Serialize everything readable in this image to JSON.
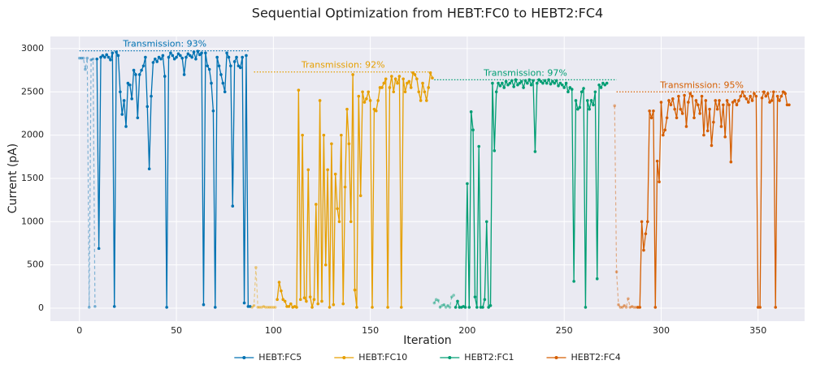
{
  "chart_data": {
    "type": "line",
    "title": "Sequential Optimization from HEBT:FC0 to HEBT2:FC4",
    "x_label": "Iteration",
    "y_label": "Current (pA)",
    "xlim": [
      -15,
      374
    ],
    "ylim": [
      -150,
      3140
    ],
    "xticks": [
      0,
      50,
      100,
      150,
      200,
      250,
      300,
      350
    ],
    "yticks": [
      0,
      500,
      1000,
      1500,
      2000,
      2500,
      3000
    ],
    "grid": true,
    "legend": "bottom",
    "series": [
      {
        "name": "HEBT:FC5",
        "color": "#0072b2",
        "lead_in": {
          "x": [
            0,
            1,
            2,
            3,
            4,
            5,
            6,
            7,
            8
          ],
          "values": [
            2890,
            2890,
            2890,
            2760,
            2890,
            10,
            2870,
            2880,
            20
          ]
        },
        "x": [
          9,
          10,
          11,
          12,
          13,
          14,
          15,
          16,
          17,
          18,
          19,
          20,
          21,
          22,
          23,
          24,
          25,
          26,
          27,
          28,
          29,
          30,
          31,
          32,
          33,
          34,
          35,
          36,
          37,
          38,
          39,
          40,
          41,
          42,
          43,
          44,
          45,
          46,
          47,
          48,
          49,
          50,
          51,
          52,
          53,
          54,
          55,
          56,
          57,
          58,
          59,
          60,
          61,
          62,
          63,
          64,
          65,
          66,
          67,
          68,
          69,
          70,
          71,
          72,
          73,
          74,
          75,
          76,
          77,
          78,
          79,
          80,
          81,
          82,
          83,
          84,
          85,
          86,
          87,
          88
        ],
        "values": [
          2880,
          690,
          2900,
          2920,
          2900,
          2930,
          2900,
          2870,
          2950,
          20,
          2960,
          2920,
          2500,
          2240,
          2400,
          2100,
          2600,
          2580,
          2420,
          2750,
          2700,
          2200,
          2700,
          2750,
          2800,
          2900,
          2330,
          1610,
          2450,
          2840,
          2880,
          2850,
          2900,
          2880,
          2920,
          2680,
          10,
          2900,
          2950,
          2920,
          2880,
          2900,
          2940,
          2920,
          2890,
          2700,
          2900,
          2940,
          2920,
          2900,
          2960,
          2880,
          2970,
          2930,
          2950,
          40,
          2950,
          2800,
          2760,
          2600,
          2280,
          10,
          2900,
          2800,
          2700,
          2600,
          2500,
          2950,
          2900,
          2800,
          1180,
          2850,
          2900,
          2800,
          2780,
          2900,
          60,
          2920,
          20,
          20
        ]
      },
      {
        "name": "HEBT:FC10",
        "color": "#e69f00",
        "lead_in": {
          "x": [
            89,
            90,
            91,
            92,
            93,
            94,
            95,
            96,
            97,
            98,
            99,
            100,
            101
          ],
          "values": [
            10,
            30,
            470,
            10,
            10,
            10,
            20,
            10,
            10,
            10,
            10,
            10,
            10
          ]
        },
        "x": [
          102,
          103,
          104,
          105,
          106,
          107,
          108,
          109,
          110,
          111,
          112,
          113,
          114,
          115,
          116,
          117,
          118,
          119,
          120,
          121,
          122,
          123,
          124,
          125,
          126,
          127,
          128,
          129,
          130,
          131,
          132,
          133,
          134,
          135,
          136,
          137,
          138,
          139,
          140,
          141,
          142,
          143,
          144,
          145,
          146,
          147,
          148,
          149,
          150,
          151,
          152,
          153,
          154,
          155,
          156,
          157,
          158,
          159,
          160,
          161,
          162,
          163,
          164,
          165,
          166,
          167,
          168,
          169,
          170,
          171,
          172,
          173,
          174,
          175,
          176,
          177,
          178,
          179,
          180,
          181,
          182
        ],
        "values": [
          100,
          300,
          200,
          100,
          80,
          20,
          20,
          50,
          10,
          20,
          10,
          2520,
          100,
          2000,
          120,
          80,
          1600,
          130,
          10,
          100,
          1200,
          50,
          2400,
          80,
          2000,
          500,
          1600,
          10,
          1900,
          40,
          1550,
          1150,
          1000,
          2000,
          50,
          1400,
          2300,
          1900,
          1000,
          2700,
          210,
          10,
          2450,
          1300,
          2500,
          2380,
          2420,
          2500,
          2400,
          10,
          2300,
          2280,
          2400,
          2550,
          2550,
          2600,
          2650,
          10,
          2550,
          2680,
          2500,
          2650,
          2600,
          2680,
          10,
          2650,
          2500,
          2600,
          2620,
          2550,
          2720,
          2700,
          2650,
          2500,
          2400,
          2600,
          2500,
          2400,
          2550,
          2720,
          2660
        ]
      },
      {
        "name": "HEBT2:FC1",
        "color": "#009e73",
        "lead_in": {
          "x": [
            183,
            184,
            185,
            186,
            187,
            188,
            189,
            190,
            191,
            192,
            193
          ],
          "values": [
            60,
            100,
            90,
            10,
            30,
            40,
            10,
            30,
            10,
            130,
            150
          ]
        },
        "x": [
          194,
          195,
          196,
          197,
          198,
          199,
          200,
          201,
          202,
          203,
          204,
          205,
          206,
          207,
          208,
          209,
          210,
          211,
          212,
          213,
          214,
          215,
          216,
          217,
          218,
          219,
          220,
          221,
          222,
          223,
          224,
          225,
          226,
          227,
          228,
          229,
          230,
          231,
          232,
          233,
          234,
          235,
          236,
          237,
          238,
          239,
          240,
          241,
          242,
          243,
          244,
          245,
          246,
          247,
          248,
          249,
          250,
          251,
          252,
          253,
          254,
          255,
          256,
          257,
          258,
          259,
          260,
          261,
          262,
          263,
          264,
          265,
          266,
          267,
          268,
          269,
          270,
          271,
          272
        ],
        "values": [
          10,
          80,
          10,
          10,
          20,
          10,
          1440,
          10,
          2270,
          2060,
          130,
          10,
          1870,
          10,
          10,
          100,
          1000,
          10,
          30,
          2600,
          1820,
          2500,
          2600,
          2570,
          2600,
          2550,
          2620,
          2580,
          2600,
          2630,
          2560,
          2640,
          2580,
          2600,
          2620,
          2550,
          2630,
          2600,
          2640,
          2580,
          2630,
          1810,
          2600,
          2640,
          2620,
          2600,
          2630,
          2600,
          2640,
          2590,
          2620,
          2600,
          2630,
          2570,
          2600,
          2580,
          2550,
          2600,
          2500,
          2550,
          2530,
          310,
          2400,
          2300,
          2320,
          2500,
          2540,
          10,
          2400,
          2300,
          2400,
          2350,
          2500,
          340,
          2580,
          2550,
          2600,
          2580,
          2600
        ]
      },
      {
        "name": "HEBT2:FC4",
        "color": "#d55e00",
        "lead_in": {
          "x": [
            276,
            277,
            278,
            279,
            280,
            281,
            282,
            283,
            284,
            285,
            286,
            287
          ],
          "values": [
            2340,
            420,
            40,
            10,
            10,
            30,
            10,
            110,
            10,
            20,
            10,
            10
          ]
        },
        "x": [
          288,
          289,
          290,
          291,
          292,
          293,
          294,
          295,
          296,
          297,
          298,
          299,
          300,
          301,
          302,
          303,
          304,
          305,
          306,
          307,
          308,
          309,
          310,
          311,
          312,
          313,
          314,
          315,
          316,
          317,
          318,
          319,
          320,
          321,
          322,
          323,
          324,
          325,
          326,
          327,
          328,
          329,
          330,
          331,
          332,
          333,
          334,
          335,
          336,
          337,
          338,
          339,
          340,
          341,
          342,
          343,
          344,
          345,
          346,
          347,
          348,
          349,
          350,
          351,
          352,
          353,
          354,
          355,
          356,
          357,
          358,
          359,
          360,
          361,
          362,
          363,
          364,
          365,
          366
        ],
        "values": [
          10,
          10,
          1000,
          670,
          860,
          1000,
          2280,
          2200,
          2280,
          10,
          1700,
          1460,
          2380,
          2000,
          2060,
          2200,
          2400,
          2350,
          2420,
          2300,
          2200,
          2450,
          2300,
          2250,
          2460,
          2100,
          2380,
          2480,
          2450,
          2200,
          2400,
          2350,
          2250,
          2450,
          2000,
          2400,
          2050,
          2300,
          1880,
          2150,
          2400,
          2300,
          2400,
          2100,
          2350,
          1980,
          2400,
          2350,
          1690,
          2380,
          2400,
          2350,
          2400,
          2450,
          2500,
          2450,
          2420,
          2380,
          2450,
          2400,
          2480,
          2450,
          10,
          10,
          2430,
          2500,
          2450,
          2480,
          2380,
          2400,
          2500,
          10,
          2450,
          2400,
          2450,
          2500,
          2480,
          2350,
          2350
        ]
      }
    ],
    "annotations": [
      {
        "text": "Transmission: 93%",
        "y": 2975,
        "x": [
          0,
          88
        ]
      },
      {
        "text": "Transmission: 92%",
        "y": 2730,
        "x": [
          90,
          182
        ]
      },
      {
        "text": "Transmission: 97%",
        "y": 2640,
        "x": [
          183,
          277
        ]
      },
      {
        "text": "Transmission: 95%",
        "y": 2500,
        "x": [
          277,
          365
        ]
      }
    ]
  }
}
